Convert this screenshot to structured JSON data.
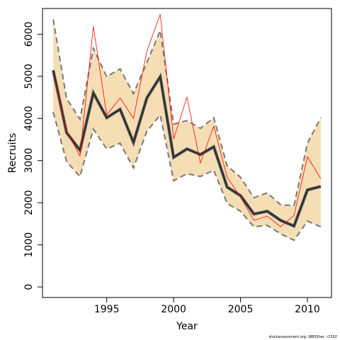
{
  "chart_data": {
    "type": "line",
    "x_label": "Year",
    "y_label": "Recruits",
    "footnote": "stockassessment.org, WBSSher, r1502",
    "x": [
      1991,
      1992,
      1993,
      1994,
      1995,
      1996,
      1997,
      1998,
      1999,
      2000,
      2001,
      2002,
      2003,
      2004,
      2005,
      2006,
      2007,
      2008,
      2009,
      2010,
      2011
    ],
    "band": {
      "color": "#f5deb3",
      "edge_color": "#777777",
      "upper": [
        6353,
        4470,
        3983,
        5664,
        4992,
        5176,
        4588,
        5328,
        6084,
        3866,
        3950,
        3765,
        4017,
        2874,
        2605,
        2118,
        2235,
        1950,
        1933,
        3412,
        4017
      ],
      "lower": [
        4151,
        2975,
        2622,
        3748,
        3277,
        3412,
        2824,
        3697,
        4084,
        2521,
        2689,
        2622,
        2773,
        1983,
        1798,
        1429,
        1462,
        1261,
        1109,
        1563,
        1429
      ]
    },
    "series": [
      {
        "color": "#333333",
        "width": 3,
        "values": [
          5143,
          3664,
          3244,
          4605,
          4017,
          4218,
          3429,
          4487,
          4992,
          3076,
          3277,
          3143,
          3328,
          2370,
          2168,
          1731,
          1798,
          1580,
          1445,
          2303,
          2387
        ]
      },
      {
        "color": "#ff0000",
        "width": 0.8,
        "values": [
          5042,
          3697,
          3109,
          6185,
          4084,
          4487,
          4000,
          5597,
          6471,
          3513,
          4504,
          2941,
          3815,
          2605,
          2134,
          1580,
          1681,
          1429,
          1697,
          3092,
          2571
        ]
      }
    ],
    "xlim": [
      1990.2,
      2011.8
    ],
    "xticks": [
      1995,
      2000,
      2005,
      2010
    ],
    "ylim": [
      -250,
      6610
    ],
    "yticks": [
      0,
      1000,
      2000,
      3000,
      4000,
      5000,
      6000
    ]
  }
}
